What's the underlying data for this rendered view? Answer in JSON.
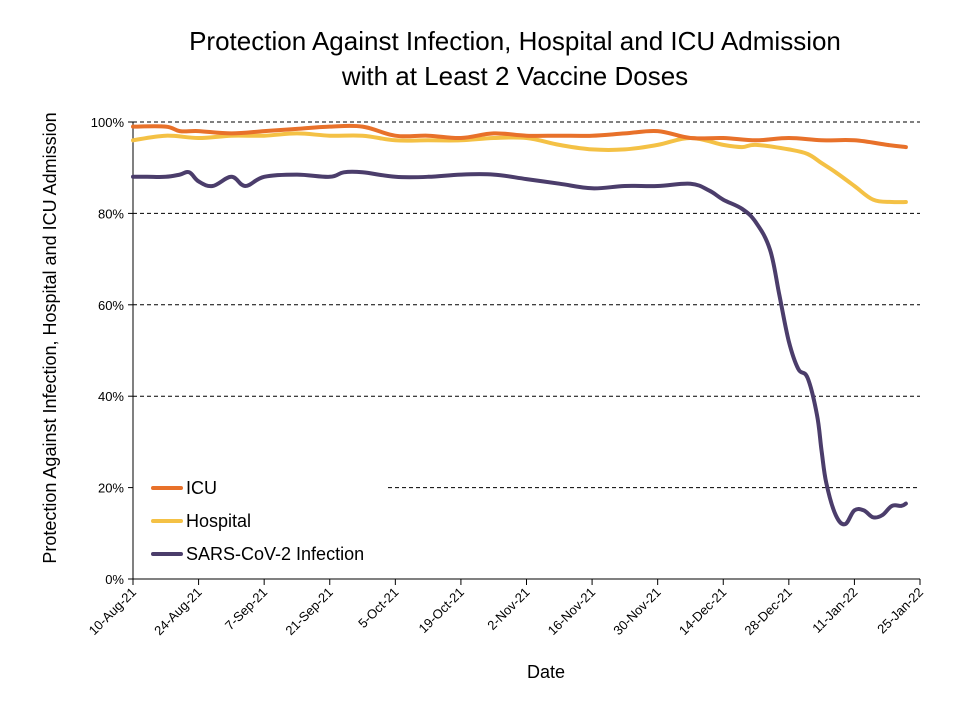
{
  "chart_data": {
    "type": "line",
    "title": [
      "Protection Against Infection, Hospital and ICU Admission",
      "with at Least 2 Vaccine Doses"
    ],
    "xlabel": "Date",
    "ylabel": "Protection Against Infection, Hospital and ICU Admission",
    "x_ticks": [
      "10-Aug-21",
      "24-Aug-21",
      "7-Sep-21",
      "21-Sep-21",
      "5-Oct-21",
      "19-Oct-21",
      "2-Nov-21",
      "16-Nov-21",
      "30-Nov-21",
      "14-Dec-21",
      "28-Dec-21",
      "11-Jan-22",
      "25-Jan-22"
    ],
    "y_ticks": [
      "0%",
      "20%",
      "40%",
      "60%",
      "80%",
      "100%"
    ],
    "ylim": [
      0,
      100
    ],
    "x_range_days": [
      0,
      168
    ],
    "grid_lines": [
      20,
      40,
      60,
      80,
      100
    ],
    "legend_position": "bottom-left",
    "series": [
      {
        "name": "ICU",
        "color": "#E8712A",
        "x": [
          0,
          7,
          10,
          14,
          21,
          28,
          35,
          42,
          49,
          56,
          63,
          70,
          77,
          84,
          91,
          98,
          105,
          112,
          119,
          126,
          133,
          140,
          147,
          154,
          161,
          165
        ],
        "values": [
          99,
          99,
          98,
          98,
          97.5,
          98,
          98.5,
          99,
          99,
          97,
          97,
          96.5,
          97.5,
          97,
          97,
          97,
          97.5,
          98,
          96.5,
          96.5,
          96,
          96.5,
          96,
          96,
          95,
          94.5
        ]
      },
      {
        "name": "Hospital",
        "color": "#F4C145",
        "x": [
          0,
          7,
          14,
          21,
          28,
          35,
          42,
          49,
          56,
          63,
          70,
          77,
          84,
          91,
          98,
          105,
          112,
          119,
          126,
          130,
          133,
          140,
          144,
          147,
          150,
          154,
          158,
          162,
          165
        ],
        "values": [
          96,
          97,
          96.5,
          97,
          97,
          97.5,
          97,
          97,
          96,
          96,
          96,
          96.5,
          96.5,
          95,
          94,
          94,
          95,
          96.5,
          95,
          94.5,
          95,
          94,
          93,
          91,
          89,
          86,
          83,
          82.5,
          82.5
        ]
      },
      {
        "name": "SARS-CoV-2 Infection",
        "color": "#4B3D6B",
        "x": [
          0,
          3,
          7,
          10,
          12,
          14,
          17,
          21,
          24,
          28,
          35,
          42,
          45,
          49,
          56,
          63,
          70,
          77,
          84,
          91,
          98,
          105,
          112,
          119,
          123,
          126,
          130,
          133,
          136,
          138,
          140,
          142,
          144,
          146,
          147,
          148,
          150,
          152,
          154,
          156,
          158,
          160,
          162,
          164,
          165
        ],
        "values": [
          88,
          88,
          88,
          88.5,
          89,
          87,
          86,
          88,
          86,
          88,
          88.5,
          88,
          89,
          89,
          88,
          88,
          88.5,
          88.5,
          87.5,
          86.5,
          85.5,
          86,
          86,
          86.5,
          85,
          83,
          81,
          78,
          72,
          62,
          52,
          46,
          44,
          36,
          28,
          21,
          14,
          12,
          15,
          15,
          13.5,
          14,
          16,
          16,
          16.5
        ]
      }
    ]
  }
}
